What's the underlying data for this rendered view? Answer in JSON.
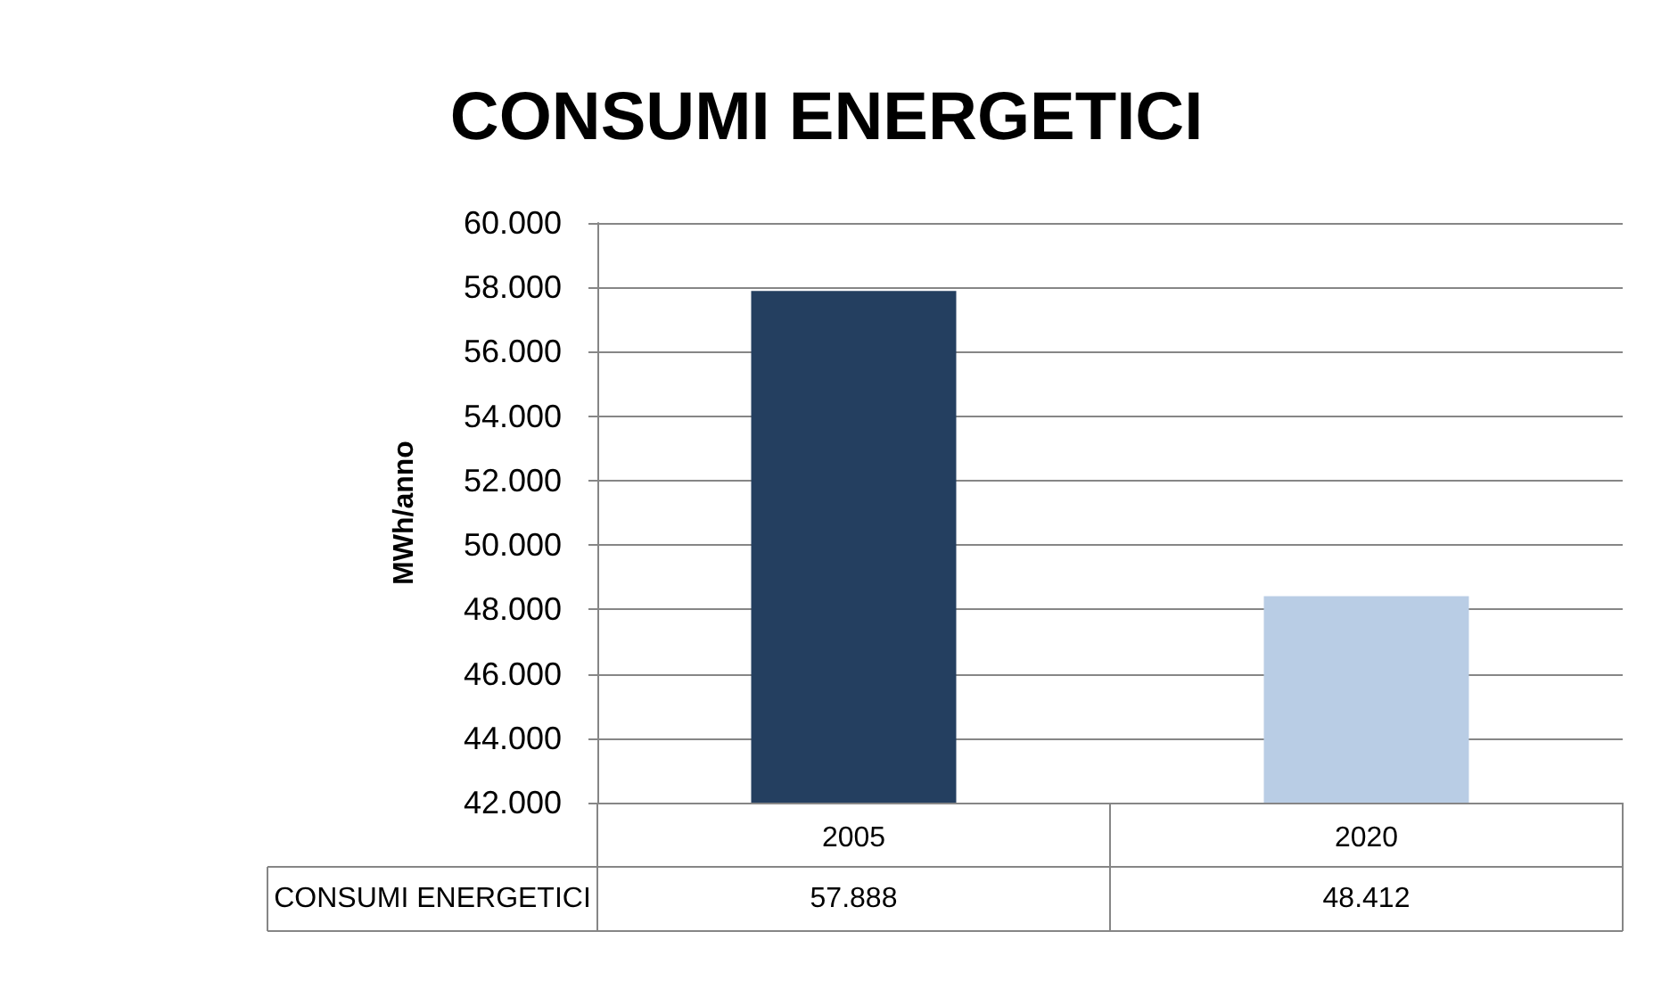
{
  "chart_data": {
    "type": "bar",
    "title": "CONSUMI ENERGETICI",
    "ylabel": "MWh/anno",
    "categories": [
      "2005",
      "2020"
    ],
    "series": [
      {
        "name": "CONSUMI ENERGETICI",
        "colors": [
          "#243f60",
          "#b9cde5"
        ],
        "values": [
          57888,
          48412
        ],
        "value_labels": [
          "57.888",
          "48.412"
        ]
      }
    ],
    "ylim": [
      42000,
      60000
    ],
    "yticks": [
      {
        "value": 42000,
        "label": "42.000"
      },
      {
        "value": 44000,
        "label": "44.000"
      },
      {
        "value": 46000,
        "label": "46.000"
      },
      {
        "value": 48000,
        "label": "48.000"
      },
      {
        "value": 50000,
        "label": "50.000"
      },
      {
        "value": 52000,
        "label": "52.000"
      },
      {
        "value": 54000,
        "label": "54.000"
      },
      {
        "value": 56000,
        "label": "56.000"
      },
      {
        "value": 58000,
        "label": "58.000"
      },
      {
        "value": 60000,
        "label": "60.000"
      }
    ],
    "grid": "y",
    "legend": false
  }
}
